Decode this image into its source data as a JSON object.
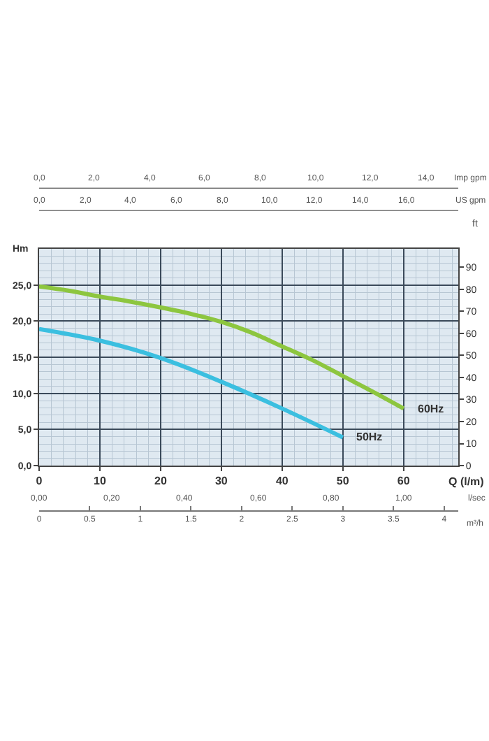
{
  "chart_data": {
    "type": "line",
    "xlabel": "Q (l/m)",
    "ylabel": "Hm",
    "y2label": "ft",
    "x2label": "m³/h",
    "xlim": [
      0,
      69
    ],
    "xticks": [
      0,
      10,
      20,
      30,
      40,
      50,
      60
    ],
    "ylim": [
      0,
      30
    ],
    "yticks": [
      {
        "value": 0,
        "label": "0,0"
      },
      {
        "value": 5,
        "label": "5,0"
      },
      {
        "value": 10,
        "label": "10,0"
      },
      {
        "value": 15,
        "label": "15,0"
      },
      {
        "value": 20,
        "label": "20,0"
      },
      {
        "value": 25,
        "label": "25,0"
      }
    ],
    "y2lim": [
      0,
      98.4
    ],
    "y2ticks": [
      0,
      10,
      20,
      30,
      40,
      50,
      60,
      70,
      80,
      90
    ],
    "x2lim": [
      0,
      4.14
    ],
    "x2ticks": [
      0,
      {
        "value": 0.5,
        "label": "0.5"
      },
      1,
      {
        "value": 1.5,
        "label": "1.5"
      },
      2,
      {
        "value": 2.5,
        "label": "2.5"
      },
      3,
      {
        "value": 3.5,
        "label": "3.5"
      },
      4
    ],
    "annotations": [
      "0,0",
      "2,0",
      "4,0",
      "6,0",
      "8,0",
      "10,0",
      "12,0",
      "14,0",
      "Imp gpm",
      "0,0",
      "2,0",
      "4,0",
      "6,0",
      "8,0",
      "10,0",
      "12,0",
      "14,0",
      "16,0",
      "US gpm",
      "0,00",
      "0,20",
      "0,40",
      "0,60",
      "0,80",
      "1,00",
      "l/sec"
    ],
    "grid": true,
    "marker": "none",
    "line_style": "solid",
    "series": [
      {
        "name": "60Hz",
        "color": "#8dc63f",
        "x": [
          0,
          5,
          10,
          15,
          20,
          25,
          30,
          35,
          40,
          45,
          50,
          55,
          60
        ],
        "values": [
          24.8,
          24.2,
          23.4,
          22.7,
          21.9,
          21.0,
          19.9,
          18.4,
          16.5,
          14.6,
          12.4,
          10.2,
          7.9
        ]
      },
      {
        "name": "50Hz",
        "color": "#3bbfe0",
        "x": [
          0,
          10,
          20,
          30,
          40,
          50
        ],
        "values": [
          18.9,
          17.3,
          14.9,
          11.6,
          7.9,
          3.9
        ]
      }
    ]
  }
}
